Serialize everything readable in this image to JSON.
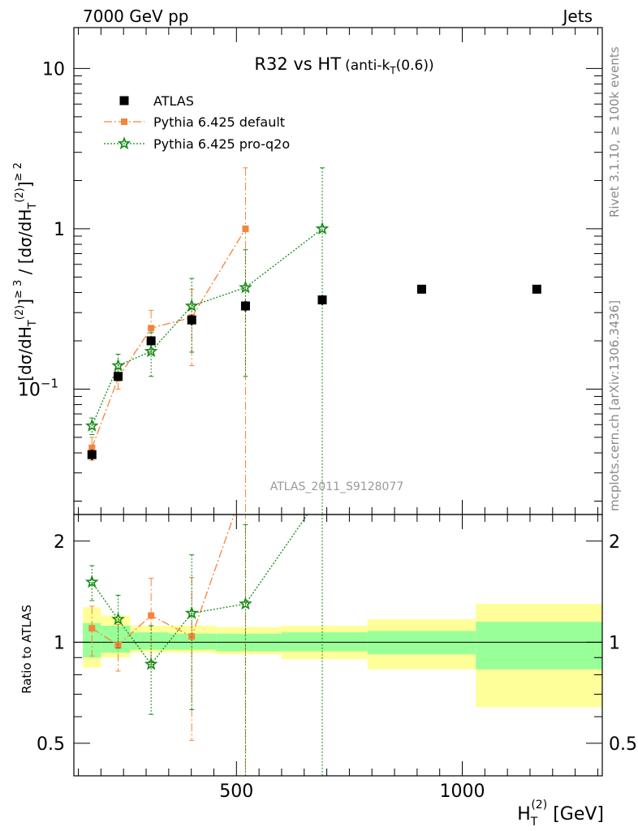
{
  "header": {
    "left": "7000 GeV pp",
    "right": "Jets",
    "side_top": "Rivet 3.1.10, ≥ 100k events",
    "side_bottom": "mcplots.cern.ch [arXiv:1306.3436]",
    "annotation": "ATLAS_2011_S9128077"
  },
  "chart_data": {
    "type": "scatter",
    "title_main": "R32 vs HT",
    "title_sub": "anti-k",
    "title_sub_index": "T",
    "title_sub_tail": "(0.6))",
    "title_sub_open": "(",
    "xlabel": "H",
    "xlabel_sup": "(2)",
    "xlabel_sub": "T",
    "xlabel_unit": "[GeV]",
    "ylabel": "[dσ/dH",
    "ylabel_tail": "/ [dσ/dH",
    "ylabel_sup": "(2)",
    "ylabel_sub": "T",
    "ylabel_ge3": "≥ 3",
    "ylabel_ge2": "≥ 2",
    "ratio_ylabel": "Ratio to ATLAS",
    "xlim": [
      140,
      1310
    ],
    "ylim_main": [
      0.0165,
      18
    ],
    "ylim_ratio": [
      0.4,
      2.4
    ],
    "y_scale": "log",
    "x_ticks": [
      {
        "value": 500,
        "label": "500"
      },
      {
        "value": 1000,
        "label": "1000"
      }
    ],
    "y_ticks_main": [
      {
        "value": 10,
        "label": "10"
      },
      {
        "value": 1,
        "label": "1"
      },
      {
        "value": 0.1,
        "label": "10",
        "exp": "−1"
      }
    ],
    "y_ticks_ratio": [
      {
        "value": 2,
        "label": "2"
      },
      {
        "value": 1,
        "label": "1"
      },
      {
        "value": 0.5,
        "label": "0.5"
      }
    ],
    "legend_position": "top-left",
    "series": [
      {
        "name": "ATLAS",
        "color": "#000000",
        "marker": "square",
        "points": [
          {
            "x": 180,
            "y": 0.039,
            "lo": 0.036,
            "hi": 0.042
          },
          {
            "x": 238,
            "y": 0.12,
            "lo": 0.112,
            "hi": 0.128
          },
          {
            "x": 311,
            "y": 0.2,
            "lo": 0.188,
            "hi": 0.212
          },
          {
            "x": 401,
            "y": 0.27,
            "lo": 0.25,
            "hi": 0.29
          },
          {
            "x": 520,
            "y": 0.33,
            "lo": 0.305,
            "hi": 0.355
          },
          {
            "x": 690,
            "y": 0.36,
            "lo": 0.335,
            "hi": 0.385
          },
          {
            "x": 910,
            "y": 0.42,
            "lo": 0.395,
            "hi": 0.445
          },
          {
            "x": 1165,
            "y": 0.42,
            "lo": 0.395,
            "hi": 0.445
          }
        ]
      },
      {
        "name": "Pythia 6.425 default",
        "color": "#f6843a",
        "marker": "square",
        "points": [
          {
            "x": 180,
            "y": 0.043,
            "lo": 0.036,
            "hi": 0.05
          },
          {
            "x": 238,
            "y": 0.117,
            "lo": 0.1,
            "hi": 0.135
          },
          {
            "x": 311,
            "y": 0.24,
            "lo": 0.17,
            "hi": 0.31
          },
          {
            "x": 401,
            "y": 0.28,
            "lo": 0.14,
            "hi": 0.42
          },
          {
            "x": 520,
            "y": 1.0,
            "lo": 0.001,
            "hi": 2.4
          }
        ]
      },
      {
        "name": "Pythia 6.425 pro-q2o",
        "color": "#138a15",
        "marker": "star",
        "points": [
          {
            "x": 180,
            "y": 0.059,
            "lo": 0.052,
            "hi": 0.066
          },
          {
            "x": 238,
            "y": 0.14,
            "lo": 0.115,
            "hi": 0.165
          },
          {
            "x": 311,
            "y": 0.172,
            "lo": 0.12,
            "hi": 0.225
          },
          {
            "x": 401,
            "y": 0.33,
            "lo": 0.17,
            "hi": 0.49
          },
          {
            "x": 520,
            "y": 0.43,
            "lo": 0.12,
            "hi": 0.74
          },
          {
            "x": 690,
            "y": 1.0,
            "lo": 0.001,
            "hi": 2.4
          }
        ]
      }
    ],
    "ratio_bands": [
      {
        "x0": 160,
        "x1": 200,
        "in_lo": 0.9,
        "in_hi": 1.14,
        "out_lo": 0.84,
        "out_hi": 1.27
      },
      {
        "x0": 200,
        "x1": 265,
        "in_lo": 0.93,
        "in_hi": 1.12,
        "out_lo": 0.9,
        "out_hi": 1.2
      },
      {
        "x0": 265,
        "x1": 350,
        "in_lo": 0.95,
        "in_hi": 1.07,
        "out_lo": 0.93,
        "out_hi": 1.12
      },
      {
        "x0": 350,
        "x1": 455,
        "in_lo": 0.95,
        "in_hi": 1.06,
        "out_lo": 0.93,
        "out_hi": 1.12
      },
      {
        "x0": 455,
        "x1": 600,
        "in_lo": 0.94,
        "in_hi": 1.06,
        "out_lo": 0.92,
        "out_hi": 1.11
      },
      {
        "x0": 600,
        "x1": 790,
        "in_lo": 0.94,
        "in_hi": 1.07,
        "out_lo": 0.89,
        "out_hi": 1.12
      },
      {
        "x0": 790,
        "x1": 1030,
        "in_lo": 0.92,
        "in_hi": 1.08,
        "out_lo": 0.83,
        "out_hi": 1.17
      },
      {
        "x0": 1030,
        "x1": 1310,
        "in_lo": 0.83,
        "in_hi": 1.15,
        "out_lo": 0.64,
        "out_hi": 1.3
      }
    ],
    "ratio_series": [
      {
        "name": "Pythia 6.425 default",
        "color": "#f6843a",
        "marker": "square",
        "points": [
          {
            "x": 180,
            "y": 1.1,
            "lo": 0.91,
            "hi": 1.28
          },
          {
            "x": 238,
            "y": 0.98,
            "lo": 0.82,
            "hi": 1.13
          },
          {
            "x": 311,
            "y": 1.2,
            "lo": 0.86,
            "hi": 1.55
          },
          {
            "x": 401,
            "y": 1.04,
            "lo": 0.51,
            "hi": 1.56
          },
          {
            "x": 520,
            "y": 3.0,
            "lo": 0.3,
            "hi": 3.0
          }
        ]
      },
      {
        "name": "Pythia 6.425 pro-q2o",
        "color": "#138a15",
        "marker": "star",
        "points": [
          {
            "x": 180,
            "y": 1.51,
            "lo": 1.33,
            "hi": 1.69
          },
          {
            "x": 238,
            "y": 1.17,
            "lo": 0.96,
            "hi": 1.38
          },
          {
            "x": 311,
            "y": 0.86,
            "lo": 0.61,
            "hi": 1.12
          },
          {
            "x": 401,
            "y": 1.22,
            "lo": 0.63,
            "hi": 1.82
          },
          {
            "x": 520,
            "y": 1.3,
            "lo": 0.3,
            "hi": 2.24
          },
          {
            "x": 690,
            "y": 2.78,
            "lo": 0.3,
            "hi": 3.0
          }
        ]
      }
    ],
    "band_colors": {
      "inner": "#99ff99",
      "outer": "#ffff99"
    }
  }
}
